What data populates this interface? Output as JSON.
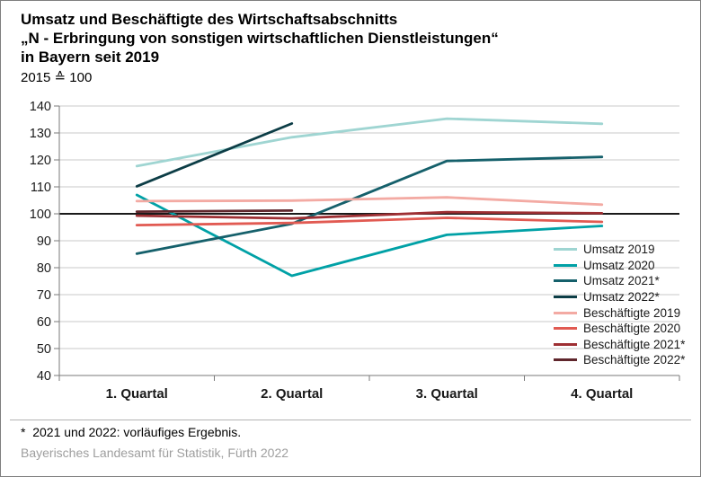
{
  "header": {
    "title_lines": [
      "Umsatz und Beschäftigte des Wirtschaftsabschnitts",
      "„N - Erbringung von sonstigen wirtschaftlichen Dienstleistungen“",
      "in Bayern seit 2019"
    ],
    "subtitle": "2015 ≙ 100"
  },
  "footer": {
    "note": "*  2021 und 2022: vorläufiges Ergebnis.",
    "source": "Bayerisches Landesamt für Statistik, Fürth 2022"
  },
  "chart_data": {
    "type": "line",
    "title": "Umsatz und Beschäftigte des Wirtschaftsabschnitts „N - Erbringung von sonstigen wirtschaftlichen Dienstleistungen“ in Bayern seit 2019",
    "subtitle": "2015 ≙ 100",
    "categories": [
      "1. Quartal",
      "2. Quartal",
      "3. Quartal",
      "4. Quartal"
    ],
    "ylim": [
      40,
      140
    ],
    "ytick_step": 10,
    "baseline": 100,
    "grid": "horizontal",
    "legend_position": "right-middle",
    "colors": {
      "axis": "#7a7a7a",
      "gridline": "#c9c9c9",
      "baseline": "#1a1a1a",
      "tick_label": "#1a1a1a"
    },
    "series": [
      {
        "name": "Umsatz 2019",
        "color": "#9fd5d2",
        "values": [
          117.7,
          128.4,
          135.3,
          133.4
        ]
      },
      {
        "name": "Umsatz 2020",
        "color": "#00a1a6",
        "values": [
          107.0,
          77.0,
          92.2,
          95.5
        ]
      },
      {
        "name": "Umsatz 2021*",
        "color": "#15606b",
        "values": [
          85.2,
          96.3,
          119.6,
          121.1
        ]
      },
      {
        "name": "Umsatz 2022*",
        "color": "#0c3d46",
        "values": [
          110.2,
          133.5,
          null,
          null
        ]
      },
      {
        "name": "Beschäftigte 2019",
        "color": "#f3aaa3",
        "values": [
          104.7,
          104.9,
          106.1,
          103.4
        ]
      },
      {
        "name": "Beschäftigte 2020",
        "color": "#e15a52",
        "values": [
          95.8,
          96.6,
          98.5,
          97.0
        ]
      },
      {
        "name": "Beschäftigte 2021*",
        "color": "#9e2f33",
        "values": [
          99.3,
          98.3,
          100.6,
          100.2
        ]
      },
      {
        "name": "Beschäftigte 2022*",
        "color": "#5f262c",
        "values": [
          100.8,
          101.2,
          null,
          null
        ]
      }
    ]
  }
}
